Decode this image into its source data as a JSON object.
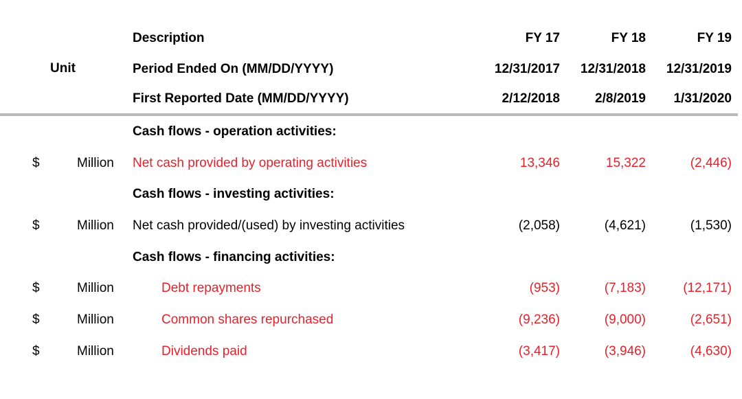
{
  "header": {
    "description_label": "Description",
    "unit_label": "Unit",
    "period_label": "Period Ended On (MM/DD/YYYY)",
    "reported_label": "First Reported Date (MM/DD/YYYY)",
    "columns": [
      {
        "fy": "FY 17",
        "period_end": "12/31/2017",
        "reported": "2/12/2018"
      },
      {
        "fy": "FY 18",
        "period_end": "12/31/2018",
        "reported": "2/8/2019"
      },
      {
        "fy": "FY 19",
        "period_end": "12/31/2019",
        "reported": "1/31/2020"
      }
    ]
  },
  "sections": {
    "operating": "Cash flows - operation activities:",
    "investing": "Cash flows - investing activities:",
    "financing": "Cash flows - financing activities:"
  },
  "rows": [
    {
      "currency": "$",
      "unit": "Million",
      "label": "Net cash provided by operating activities",
      "values": [
        "13,346",
        "15,322",
        "(2,446)"
      ]
    },
    {
      "currency": "$",
      "unit": "Million",
      "label": "Net cash provided/(used) by investing activities",
      "values": [
        "(2,058)",
        "(4,621)",
        "(1,530)"
      ]
    },
    {
      "currency": "$",
      "unit": "Million",
      "label": "Debt repayments",
      "values": [
        "(953)",
        "(7,183)",
        "(12,171)"
      ]
    },
    {
      "currency": "$",
      "unit": "Million",
      "label": "Common shares repurchased",
      "values": [
        "(9,236)",
        "(9,000)",
        "(2,651)"
      ]
    },
    {
      "currency": "$",
      "unit": "Million",
      "label": "Dividends paid",
      "values": [
        "(3,417)",
        "(3,946)",
        "(4,630)"
      ]
    }
  ],
  "colors": {
    "highlight_text": "#e8202a",
    "normal_text": "#000000",
    "divider": "#b8b8b8"
  }
}
